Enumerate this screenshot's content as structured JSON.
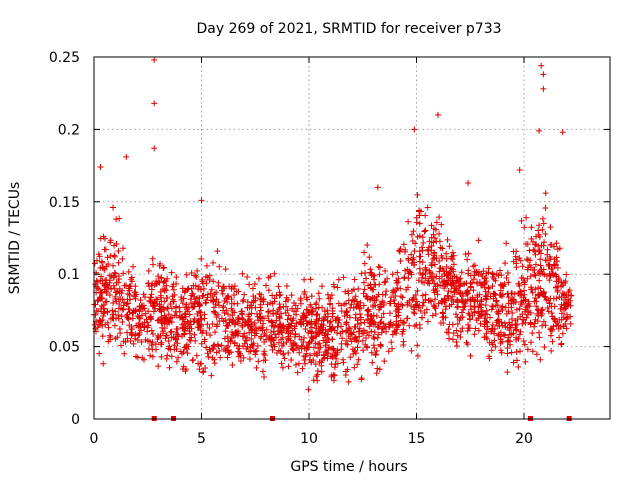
{
  "chart_data": {
    "type": "scatter",
    "title": "Day 269 of 2021, SRMTID for receiver p733",
    "xlabel": "GPS time / hours",
    "ylabel": "SRMTID / TECUs",
    "xlim": [
      0,
      24
    ],
    "ylim": [
      0,
      0.25
    ],
    "grid": true,
    "marker": "+",
    "color": "#e00000",
    "xticks": [
      0,
      5,
      10,
      15,
      20
    ],
    "xtick_labels": [
      "0",
      "5",
      "10",
      "15",
      "20"
    ],
    "yticks": [
      0,
      0.05,
      0.1,
      0.15,
      0.2,
      0.25
    ],
    "ytick_labels": [
      "0",
      "0.05",
      "0.1",
      "0.15",
      "0.2",
      "0.25"
    ],
    "data_end_hour": 22.2,
    "outage_markers_x": [
      2.8,
      3.7,
      8.3,
      20.3,
      22.1
    ],
    "notable_points": [
      {
        "x": 2.8,
        "y": 0.248
      },
      {
        "x": 2.8,
        "y": 0.218
      },
      {
        "x": 2.8,
        "y": 0.187
      },
      {
        "x": 16.0,
        "y": 0.21
      },
      {
        "x": 14.9,
        "y": 0.2
      },
      {
        "x": 20.8,
        "y": 0.244
      },
      {
        "x": 20.9,
        "y": 0.238
      },
      {
        "x": 20.9,
        "y": 0.228
      },
      {
        "x": 20.7,
        "y": 0.199
      },
      {
        "x": 21.8,
        "y": 0.198
      },
      {
        "x": 1.5,
        "y": 0.181
      },
      {
        "x": 0.3,
        "y": 0.174
      },
      {
        "x": 13.2,
        "y": 0.16
      },
      {
        "x": 17.4,
        "y": 0.163
      },
      {
        "x": 19.8,
        "y": 0.172
      },
      {
        "x": 5.0,
        "y": 0.151
      }
    ],
    "hourly_envelope": [
      {
        "hour": 0,
        "y_min": 0.04,
        "y_max": 0.14
      },
      {
        "hour": 1,
        "y_min": 0.03,
        "y_max": 0.17
      },
      {
        "hour": 2,
        "y_min": 0.03,
        "y_max": 0.12
      },
      {
        "hour": 3,
        "y_min": 0.03,
        "y_max": 0.14
      },
      {
        "hour": 4,
        "y_min": 0.03,
        "y_max": 0.11
      },
      {
        "hour": 5,
        "y_min": 0.02,
        "y_max": 0.14
      },
      {
        "hour": 6,
        "y_min": 0.025,
        "y_max": 0.14
      },
      {
        "hour": 7,
        "y_min": 0.03,
        "y_max": 0.11
      },
      {
        "hour": 8,
        "y_min": 0.03,
        "y_max": 0.12
      },
      {
        "hour": 9,
        "y_min": 0.03,
        "y_max": 0.11
      },
      {
        "hour": 10,
        "y_min": 0.02,
        "y_max": 0.12
      },
      {
        "hour": 11,
        "y_min": 0.02,
        "y_max": 0.11
      },
      {
        "hour": 12,
        "y_min": 0.02,
        "y_max": 0.13
      },
      {
        "hour": 13,
        "y_min": 0.02,
        "y_max": 0.15
      },
      {
        "hour": 14,
        "y_min": 0.04,
        "y_max": 0.12
      },
      {
        "hour": 15,
        "y_min": 0.04,
        "y_max": 0.19
      },
      {
        "hour": 16,
        "y_min": 0.05,
        "y_max": 0.17
      },
      {
        "hour": 17,
        "y_min": 0.04,
        "y_max": 0.14
      },
      {
        "hour": 18,
        "y_min": 0.04,
        "y_max": 0.14
      },
      {
        "hour": 19,
        "y_min": 0.03,
        "y_max": 0.13
      },
      {
        "hour": 20,
        "y_min": 0.02,
        "y_max": 0.17
      },
      {
        "hour": 21,
        "y_min": 0.03,
        "y_max": 0.19
      },
      {
        "hour": 22,
        "y_min": 0.05,
        "y_max": 0.11
      }
    ]
  }
}
